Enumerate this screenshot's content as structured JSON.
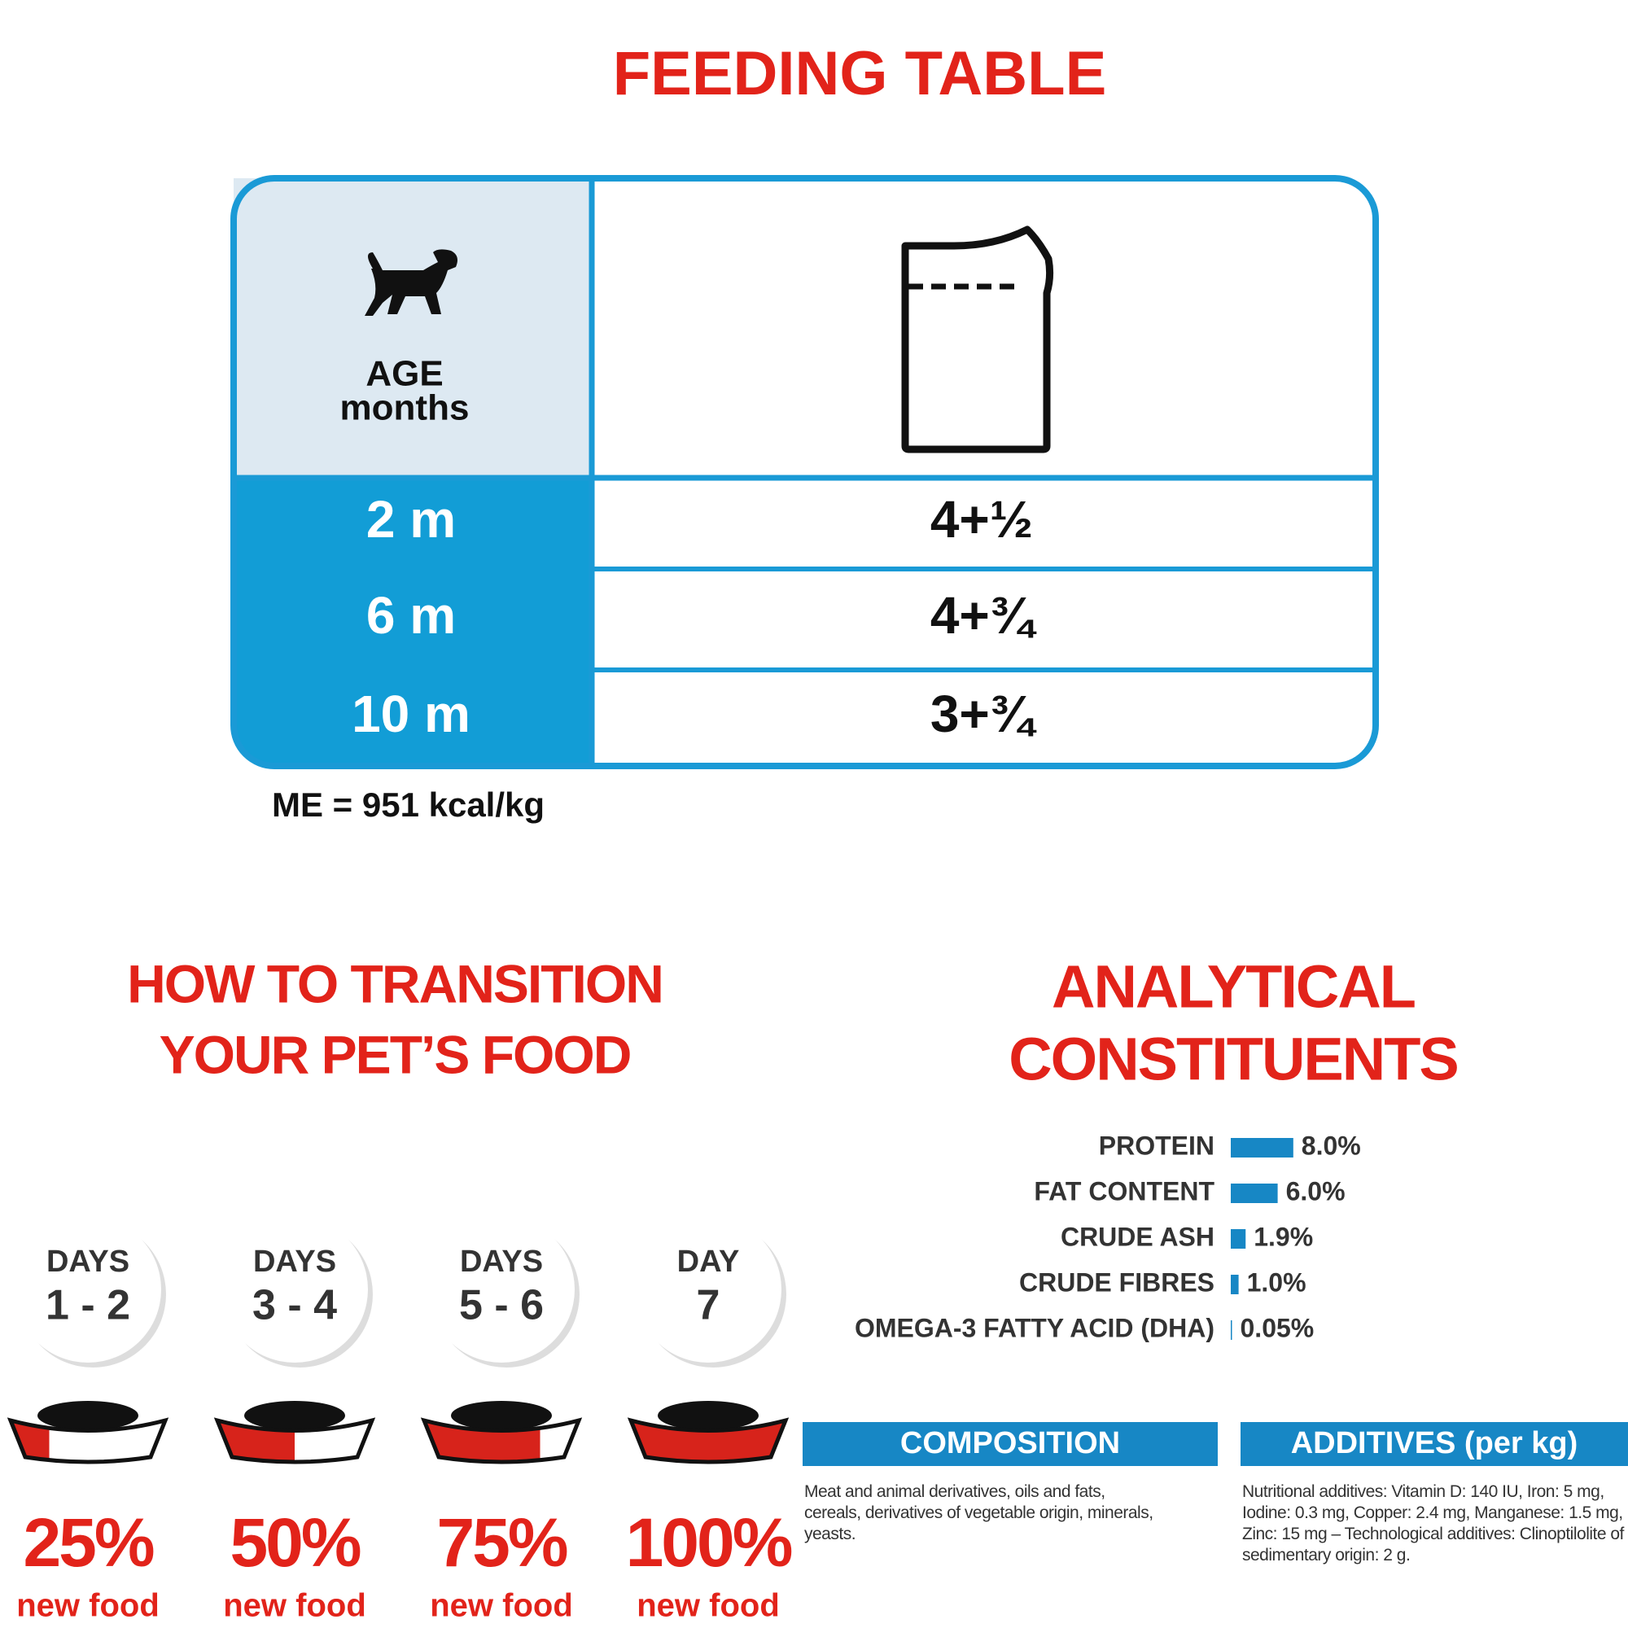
{
  "feeding_table": {
    "title": "FEEDING TABLE",
    "age_header": "AGE",
    "age_unit": "months",
    "rows": [
      {
        "age": "2 m",
        "amount": "4+½"
      },
      {
        "age": "6 m",
        "amount": "4+¾"
      },
      {
        "age": "10 m",
        "amount": "3+¾"
      }
    ],
    "note": "ME = 951 kcal/kg"
  },
  "transition": {
    "title_lines": [
      "HOW TO TRANSITION",
      "YOUR PET’S FOOD"
    ],
    "steps": [
      {
        "label": "DAYS",
        "days": "1 - 2",
        "percent": {
          "value": 25,
          "label": "25%"
        },
        "caption": "new food"
      },
      {
        "label": "DAYS",
        "days": "3 - 4",
        "percent": {
          "value": 50,
          "label": "50%"
        },
        "caption": "new food"
      },
      {
        "label": "DAYS",
        "days": "5 - 6",
        "percent": {
          "value": 75,
          "label": "75%"
        },
        "caption": "new food"
      },
      {
        "label": "DAY",
        "days": "7",
        "percent": {
          "value": 100,
          "label": "100%"
        },
        "caption": "new food"
      }
    ]
  },
  "analytical": {
    "title_lines": [
      "ANALYTICAL",
      "CONSTITUENTS"
    ],
    "items": [
      {
        "name": "PROTEIN",
        "value": 8.0,
        "value_label": "8.0%"
      },
      {
        "name": "FAT CONTENT",
        "value": 6.0,
        "value_label": "6.0%"
      },
      {
        "name": "CRUDE ASH",
        "value": 1.9,
        "value_label": "1.9%"
      },
      {
        "name": "CRUDE FIBRES",
        "value": 1.0,
        "value_label": "1.0%"
      },
      {
        "name": "OMEGA-3 FATTY ACID (DHA)",
        "value": 0.05,
        "value_label": "0.05%"
      }
    ]
  },
  "composition": {
    "heading": "COMPOSITION",
    "text": "Meat and animal derivatives, oils and fats, cereals, derivatives of vegetable origin, minerals, yeasts."
  },
  "additives": {
    "heading": "ADDITIVES (per kg)",
    "text": "Nutritional additives: Vitamin D: 140 IU, Iron: 5 mg, Iodine: 0.3 mg, Copper: 2.4 mg, Manganese: 1.5 mg, Zinc: 15 mg – Technological additives: Clinoptilolite of sedimentary origin: 2 g."
  }
}
